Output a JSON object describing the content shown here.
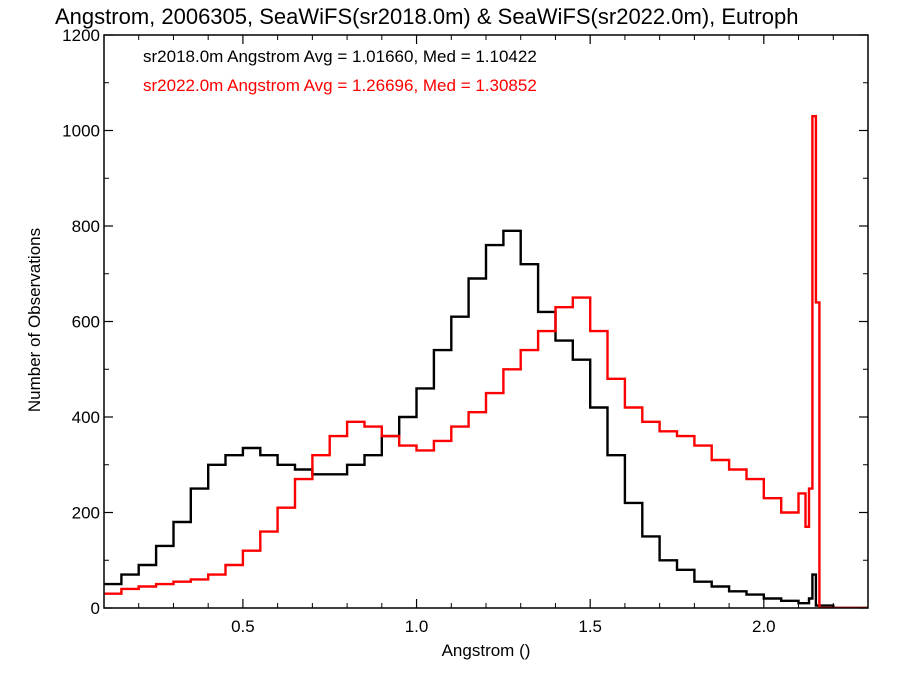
{
  "chart_data": {
    "type": "histogram",
    "title": "Angstrom, 2006305, SeaWiFS(sr2018.0m) & SeaWiFS(sr2022.0m), Eutroph",
    "xlabel": "Angstrom ()",
    "ylabel": "Number of Observations",
    "xlim": [
      0.1,
      2.3
    ],
    "ylim": [
      0,
      1200
    ],
    "x_ticks": [
      0.5,
      1.0,
      1.5,
      2.0
    ],
    "x_tick_labels": [
      "0.5",
      "1.0",
      "1.5",
      "2.0"
    ],
    "y_ticks": [
      0,
      200,
      400,
      600,
      800,
      1000,
      1200
    ],
    "y_tick_labels": [
      "0",
      "200",
      "400",
      "600",
      "800",
      "1000",
      "1200"
    ],
    "grid": false,
    "legend_position": "top-left",
    "series": [
      {
        "name": "sr2018.0m",
        "color": "#000000",
        "legend_text": "sr2018.0m Angstrom Avg = 1.01660, Med = 1.10422",
        "x": [
          0.1,
          0.15,
          0.2,
          0.25,
          0.3,
          0.35,
          0.4,
          0.45,
          0.5,
          0.55,
          0.6,
          0.65,
          0.7,
          0.75,
          0.8,
          0.85,
          0.9,
          0.95,
          1.0,
          1.05,
          1.1,
          1.15,
          1.2,
          1.25,
          1.3,
          1.35,
          1.4,
          1.45,
          1.5,
          1.55,
          1.6,
          1.65,
          1.7,
          1.75,
          1.8,
          1.85,
          1.9,
          1.95,
          2.0,
          2.05,
          2.1,
          2.13,
          2.14,
          2.15,
          2.2,
          2.3
        ],
        "values": [
          50,
          70,
          90,
          130,
          180,
          250,
          300,
          320,
          335,
          320,
          300,
          290,
          280,
          280,
          300,
          320,
          360,
          400,
          460,
          540,
          610,
          690,
          760,
          790,
          720,
          620,
          560,
          520,
          420,
          320,
          220,
          150,
          100,
          80,
          55,
          45,
          35,
          28,
          20,
          15,
          10,
          20,
          70,
          5,
          0,
          0
        ]
      },
      {
        "name": "sr2022.0m",
        "color": "#ff0000",
        "legend_text": "sr2022.0m Angstrom Avg = 1.26696, Med = 1.30852",
        "x": [
          0.1,
          0.15,
          0.2,
          0.25,
          0.3,
          0.35,
          0.4,
          0.45,
          0.5,
          0.55,
          0.6,
          0.65,
          0.7,
          0.75,
          0.8,
          0.85,
          0.9,
          0.95,
          1.0,
          1.05,
          1.1,
          1.15,
          1.2,
          1.25,
          1.3,
          1.35,
          1.4,
          1.45,
          1.5,
          1.55,
          1.6,
          1.65,
          1.7,
          1.75,
          1.8,
          1.85,
          1.9,
          1.95,
          2.0,
          2.05,
          2.1,
          2.12,
          2.13,
          2.14,
          2.15,
          2.16,
          2.2,
          2.3
        ],
        "values": [
          30,
          40,
          45,
          50,
          55,
          60,
          70,
          90,
          120,
          160,
          210,
          270,
          320,
          360,
          390,
          380,
          360,
          340,
          330,
          350,
          380,
          410,
          450,
          500,
          540,
          580,
          630,
          650,
          580,
          480,
          420,
          390,
          370,
          360,
          340,
          310,
          290,
          270,
          230,
          200,
          240,
          170,
          250,
          1030,
          640,
          0,
          0,
          0
        ]
      }
    ]
  }
}
